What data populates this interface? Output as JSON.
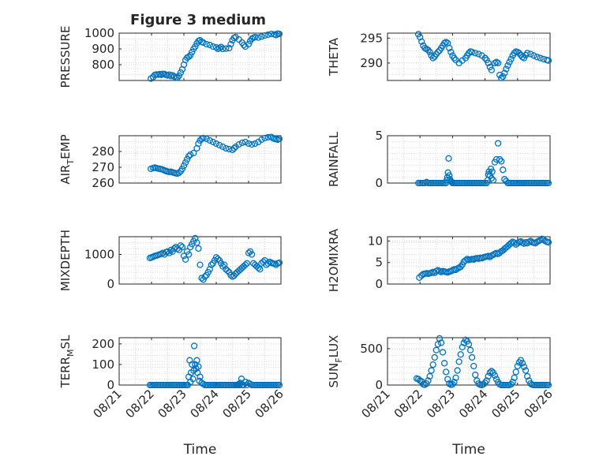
{
  "figure": {
    "title": "Figure 3 medium"
  },
  "chart_data": [
    {
      "type": "scatter",
      "ylabel": "PRESSURE",
      "xlabel": "",
      "xlim": [
        0,
        5
      ],
      "ylim": [
        700,
        1000
      ],
      "yticks": [
        800,
        900,
        1000
      ],
      "xticks": [
        0,
        1,
        2,
        3,
        4,
        5
      ],
      "xtick_labels": [],
      "grid": true,
      "x": [
        0.98,
        1.05,
        1.1,
        1.15,
        1.2,
        1.25,
        1.3,
        1.35,
        1.4,
        1.45,
        1.5,
        1.55,
        1.6,
        1.65,
        1.7,
        1.75,
        1.8,
        1.85,
        1.9,
        1.95,
        2.0,
        2.05,
        2.1,
        2.15,
        2.2,
        2.25,
        2.3,
        2.35,
        2.4,
        2.45,
        2.5,
        2.55,
        2.6,
        2.7,
        2.8,
        2.9,
        3.0,
        3.05,
        3.1,
        3.15,
        3.2,
        3.3,
        3.4,
        3.45,
        3.5,
        3.55,
        3.6,
        3.7,
        3.8,
        3.85,
        3.9,
        4.0,
        4.05,
        4.1,
        4.15,
        4.2,
        4.3,
        4.4,
        4.5,
        4.6,
        4.7,
        4.8,
        4.85,
        4.9,
        4.95
      ],
      "y": [
        712,
        722,
        735,
        738,
        737,
        740,
        736,
        742,
        741,
        735,
        732,
        737,
        728,
        733,
        725,
        720,
        718,
        730,
        750,
        770,
        800,
        830,
        845,
        850,
        860,
        880,
        900,
        915,
        935,
        950,
        955,
        945,
        940,
        930,
        925,
        915,
        910,
        900,
        905,
        912,
        900,
        902,
        905,
        930,
        955,
        970,
        975,
        960,
        940,
        925,
        915,
        930,
        950,
        965,
        970,
        975,
        972,
        978,
        985,
        990,
        995,
        992,
        988,
        997,
        995
      ]
    },
    {
      "type": "scatter",
      "ylabel": "THETA",
      "xlabel": "",
      "xlim": [
        0,
        5
      ],
      "ylim": [
        286.5,
        296
      ],
      "yticks": [
        290,
        295
      ],
      "xticks": [
        0,
        1,
        2,
        3,
        4,
        5
      ],
      "xtick_labels": [],
      "grid": true,
      "x": [
        0.95,
        1.0,
        1.05,
        1.1,
        1.15,
        1.2,
        1.25,
        1.3,
        1.35,
        1.4,
        1.45,
        1.5,
        1.55,
        1.6,
        1.65,
        1.7,
        1.75,
        1.8,
        1.85,
        1.9,
        1.95,
        2.0,
        2.05,
        2.1,
        2.2,
        2.3,
        2.4,
        2.45,
        2.5,
        2.55,
        2.6,
        2.7,
        2.8,
        2.9,
        3.0,
        3.05,
        3.1,
        3.15,
        3.2,
        3.3,
        3.35,
        3.4,
        3.45,
        3.5,
        3.55,
        3.6,
        3.65,
        3.7,
        3.75,
        3.8,
        3.85,
        3.9,
        3.95,
        4.0,
        4.05,
        4.1,
        4.15,
        4.2,
        4.25,
        4.3,
        4.4,
        4.5,
        4.6,
        4.7,
        4.8,
        4.9,
        4.95
      ],
      "y": [
        295.8,
        295.2,
        294.3,
        293.5,
        293.0,
        292.8,
        292.6,
        292.2,
        291.5,
        291.0,
        291.3,
        291.8,
        292.2,
        292.5,
        293.0,
        293.5,
        294.0,
        294.2,
        294.0,
        293.0,
        292.2,
        291.5,
        291.0,
        290.6,
        290.0,
        290.5,
        291.0,
        291.5,
        292.0,
        292.3,
        292.2,
        292.0,
        291.8,
        291.5,
        291.0,
        290.6,
        290.0,
        289.2,
        288.6,
        290.0,
        290.2,
        290.0,
        287.6,
        287.0,
        287.3,
        288.0,
        288.8,
        289.5,
        290.2,
        290.8,
        291.5,
        292.0,
        292.3,
        292.2,
        292.0,
        291.6,
        291.2,
        291.0,
        291.6,
        292.0,
        291.8,
        291.5,
        291.2,
        291.0,
        290.8,
        290.6,
        290.5
      ]
    },
    {
      "type": "scatter",
      "ylabel": "AIR_TEMP",
      "xlabel": "",
      "xlim": [
        0,
        5
      ],
      "ylim": [
        260,
        290
      ],
      "yticks": [
        260,
        270,
        280
      ],
      "xticks": [
        0,
        1,
        2,
        3,
        4,
        5
      ],
      "xtick_labels": [],
      "grid": true,
      "x": [
        0.98,
        1.05,
        1.1,
        1.15,
        1.2,
        1.25,
        1.3,
        1.35,
        1.4,
        1.45,
        1.5,
        1.55,
        1.6,
        1.65,
        1.7,
        1.75,
        1.8,
        1.85,
        1.9,
        1.95,
        2.0,
        2.05,
        2.1,
        2.15,
        2.2,
        2.3,
        2.4,
        2.45,
        2.5,
        2.55,
        2.6,
        2.7,
        2.8,
        2.9,
        3.0,
        3.1,
        3.2,
        3.3,
        3.4,
        3.5,
        3.55,
        3.6,
        3.7,
        3.8,
        3.9,
        4.0,
        4.1,
        4.2,
        4.3,
        4.4,
        4.5,
        4.6,
        4.7,
        4.75,
        4.8,
        4.85,
        4.9,
        4.95
      ],
      "y": [
        269,
        269.5,
        269.8,
        269.5,
        269.2,
        269.0,
        268.8,
        268.5,
        268.0,
        267.6,
        267.3,
        267.0,
        267.2,
        266.8,
        266.5,
        266.2,
        266.0,
        266.5,
        267.5,
        269,
        271,
        273,
        275,
        277,
        278,
        279,
        282,
        285,
        287,
        288,
        288.5,
        288,
        287,
        286,
        285,
        284,
        283,
        282,
        281.5,
        281,
        282,
        283,
        284.5,
        285.5,
        286,
        285,
        284.5,
        285,
        286,
        287.5,
        288.5,
        289,
        289.2,
        288.5,
        288,
        287.8,
        287.5,
        288
      ]
    },
    {
      "type": "scatter",
      "ylabel": "RAINFALL",
      "xlabel": "",
      "xlim": [
        0,
        5
      ],
      "ylim": [
        0,
        5
      ],
      "yticks": [
        0,
        5
      ],
      "xticks": [
        0,
        1,
        2,
        3,
        4,
        5
      ],
      "xtick_labels": [],
      "grid": true,
      "x": [
        0.95,
        1.0,
        1.05,
        1.1,
        1.15,
        1.2,
        1.25,
        1.3,
        1.35,
        1.4,
        1.45,
        1.5,
        1.55,
        1.6,
        1.65,
        1.7,
        1.75,
        1.8,
        1.82,
        1.84,
        1.86,
        1.88,
        1.9,
        1.92,
        1.95,
        1.98,
        2.0,
        2.05,
        2.1,
        2.15,
        2.2,
        2.25,
        2.3,
        2.35,
        2.4,
        2.45,
        2.5,
        2.55,
        2.6,
        2.65,
        2.7,
        2.75,
        2.8,
        2.85,
        2.9,
        2.95,
        3.0,
        3.05,
        3.08,
        3.1,
        3.12,
        3.15,
        3.18,
        3.2,
        3.22,
        3.25,
        3.3,
        3.35,
        3.4,
        3.45,
        3.5,
        3.55,
        3.6,
        3.65,
        3.7,
        3.75,
        3.8,
        3.85,
        3.9,
        3.95,
        4.0,
        4.05,
        4.1,
        4.15,
        4.2,
        4.25,
        4.3,
        4.35,
        4.4,
        4.45,
        4.5,
        4.55,
        4.6,
        4.65,
        4.7,
        4.75,
        4.8,
        4.85,
        4.9,
        4.95
      ],
      "y": [
        0,
        0,
        0,
        0,
        0,
        0.1,
        0,
        0,
        0,
        0,
        0,
        0,
        0,
        0,
        0,
        0,
        0,
        0,
        0.3,
        0.6,
        1.1,
        2.6,
        0.8,
        0.4,
        0.2,
        0.1,
        0,
        0,
        0,
        0,
        0,
        0,
        0,
        0,
        0,
        0,
        0,
        0,
        0,
        0,
        0,
        0,
        0,
        0,
        0,
        0,
        0,
        0,
        0.3,
        0.9,
        1.2,
        0.8,
        1.5,
        0.5,
        1.2,
        0.3,
        2.2,
        2.5,
        4.2,
        2.5,
        2.3,
        1.4,
        0.4,
        0.2,
        0,
        0,
        0,
        0,
        0,
        0,
        0,
        0,
        0,
        0,
        0,
        0,
        0,
        0,
        0,
        0,
        0,
        0,
        0,
        0,
        0,
        0,
        0,
        0,
        0,
        0
      ]
    },
    {
      "type": "scatter",
      "ylabel": "MIXDEPTH",
      "xlabel": "",
      "xlim": [
        0,
        5
      ],
      "ylim": [
        0,
        1600
      ],
      "yticks": [
        0,
        1000
      ],
      "xticks": [
        0,
        1,
        2,
        3,
        4,
        5
      ],
      "xtick_labels": [],
      "grid": true,
      "x": [
        0.95,
        1.0,
        1.05,
        1.1,
        1.15,
        1.2,
        1.25,
        1.3,
        1.35,
        1.4,
        1.45,
        1.5,
        1.55,
        1.6,
        1.65,
        1.7,
        1.75,
        1.8,
        1.85,
        1.9,
        1.95,
        2.0,
        2.05,
        2.1,
        2.15,
        2.2,
        2.25,
        2.3,
        2.35,
        2.4,
        2.45,
        2.5,
        2.55,
        2.6,
        2.65,
        2.7,
        2.75,
        2.8,
        2.85,
        2.9,
        2.95,
        3.0,
        3.05,
        3.1,
        3.15,
        3.2,
        3.25,
        3.3,
        3.35,
        3.4,
        3.45,
        3.5,
        3.55,
        3.6,
        3.65,
        3.7,
        3.75,
        3.8,
        3.85,
        3.9,
        3.95,
        4.0,
        4.05,
        4.1,
        4.15,
        4.2,
        4.25,
        4.3,
        4.35,
        4.4,
        4.45,
        4.5,
        4.55,
        4.6,
        4.65,
        4.7,
        4.75,
        4.8,
        4.85,
        4.9,
        4.95
      ],
      "y": [
        880,
        900,
        920,
        950,
        960,
        980,
        1000,
        1020,
        1050,
        1000,
        1080,
        1100,
        1050,
        1150,
        1100,
        1200,
        1250,
        1200,
        1150,
        1300,
        1250,
        950,
        830,
        1100,
        1000,
        1250,
        1350,
        1450,
        1550,
        1400,
        1200,
        650,
        200,
        150,
        250,
        300,
        400,
        500,
        650,
        700,
        800,
        900,
        850,
        800,
        700,
        600,
        650,
        500,
        450,
        400,
        300,
        250,
        280,
        350,
        400,
        450,
        500,
        550,
        600,
        650,
        700,
        1050,
        1100,
        1000,
        700,
        650,
        600,
        550,
        500,
        700,
        750,
        800,
        650,
        700,
        750,
        720,
        700,
        680,
        650,
        700,
        720
      ]
    },
    {
      "type": "scatter",
      "ylabel": "H2OMIXRA",
      "xlabel": "",
      "xlim": [
        0,
        5
      ],
      "ylim": [
        0,
        11
      ],
      "yticks": [
        0,
        5,
        10
      ],
      "xticks": [
        0,
        1,
        2,
        3,
        4,
        5
      ],
      "xtick_labels": [],
      "grid": true,
      "x": [
        0.98,
        1.05,
        1.1,
        1.15,
        1.2,
        1.25,
        1.3,
        1.35,
        1.4,
        1.45,
        1.5,
        1.55,
        1.6,
        1.65,
        1.7,
        1.75,
        1.8,
        1.85,
        1.9,
        1.95,
        2.0,
        2.05,
        2.1,
        2.15,
        2.2,
        2.25,
        2.3,
        2.35,
        2.4,
        2.45,
        2.5,
        2.55,
        2.6,
        2.65,
        2.7,
        2.75,
        2.8,
        2.85,
        2.9,
        2.95,
        3.0,
        3.05,
        3.1,
        3.15,
        3.2,
        3.25,
        3.3,
        3.35,
        3.4,
        3.45,
        3.5,
        3.55,
        3.6,
        3.65,
        3.7,
        3.75,
        3.8,
        3.85,
        3.9,
        3.95,
        4.0,
        4.05,
        4.1,
        4.15,
        4.2,
        4.25,
        4.3,
        4.35,
        4.4,
        4.45,
        4.5,
        4.55,
        4.6,
        4.65,
        4.7,
        4.75,
        4.8,
        4.85,
        4.9,
        4.95
      ],
      "y": [
        1.5,
        2.0,
        2.3,
        2.4,
        2.5,
        2.4,
        2.5,
        2.6,
        2.8,
        2.6,
        3.0,
        3.2,
        3.0,
        2.8,
        3.0,
        2.9,
        2.8,
        2.7,
        2.9,
        3.0,
        3.2,
        3.4,
        3.3,
        3.6,
        3.8,
        4.0,
        4.5,
        5.2,
        5.5,
        5.8,
        5.6,
        5.7,
        5.8,
        5.7,
        5.9,
        6.0,
        5.9,
        6.1,
        6.0,
        6.2,
        6.3,
        6.4,
        6.5,
        6.3,
        6.6,
        6.8,
        7.0,
        7.2,
        7.0,
        7.3,
        7.6,
        7.8,
        8.2,
        8.5,
        8.8,
        9.2,
        9.5,
        9.8,
        9.6,
        9.2,
        9.5,
        9.8,
        9.9,
        9.6,
        9.4,
        9.7,
        9.5,
        9.8,
        10.0,
        9.7,
        9.6,
        9.5,
        9.8,
        10.0,
        10.2,
        10.5,
        10.3,
        10.0,
        9.8,
        9.7
      ]
    },
    {
      "type": "scatter",
      "ylabel": "TERR_MSL",
      "xlabel": "Time",
      "xlim": [
        0,
        5
      ],
      "ylim": [
        0,
        230
      ],
      "yticks": [
        0,
        100,
        200
      ],
      "xticks": [
        0,
        1,
        2,
        3,
        4,
        5
      ],
      "xtick_labels": [
        "08/21",
        "08/22",
        "08/23",
        "08/24",
        "08/25",
        "08/26"
      ],
      "grid": true,
      "x": [
        0.95,
        1.0,
        1.05,
        1.1,
        1.15,
        1.2,
        1.25,
        1.3,
        1.35,
        1.4,
        1.45,
        1.5,
        1.55,
        1.6,
        1.65,
        1.7,
        1.75,
        1.8,
        1.85,
        1.9,
        1.95,
        2.0,
        2.05,
        2.1,
        2.12,
        2.15,
        2.18,
        2.2,
        2.22,
        2.25,
        2.28,
        2.3,
        2.32,
        2.35,
        2.38,
        2.4,
        2.42,
        2.45,
        2.48,
        2.5,
        2.55,
        2.6,
        2.65,
        2.7,
        2.75,
        2.8,
        2.85,
        2.9,
        2.95,
        3.0,
        3.05,
        3.1,
        3.15,
        3.2,
        3.25,
        3.3,
        3.35,
        3.4,
        3.45,
        3.5,
        3.55,
        3.6,
        3.62,
        3.65,
        3.68,
        3.7,
        3.72,
        3.75,
        3.78,
        3.8,
        3.82,
        3.85,
        3.9,
        3.95,
        4.0,
        4.05,
        4.1,
        4.15,
        4.2,
        4.25,
        4.3,
        4.35,
        4.4,
        4.45,
        4.5,
        4.55,
        4.6,
        4.65,
        4.7,
        4.75,
        4.8,
        4.85,
        4.9,
        4.95
      ],
      "y": [
        0,
        0,
        0,
        0,
        0,
        0,
        0,
        0,
        0,
        0,
        0,
        0,
        0,
        0,
        0,
        0,
        0,
        0,
        0,
        0,
        0,
        0,
        0,
        0,
        0,
        40,
        120,
        15,
        60,
        100,
        30,
        70,
        190,
        100,
        80,
        120,
        60,
        90,
        20,
        40,
        10,
        5,
        0,
        0,
        0,
        0,
        0,
        0,
        0,
        0,
        0,
        0,
        0,
        0,
        0,
        0,
        0,
        0,
        0,
        0,
        0,
        0,
        0,
        0,
        0,
        5,
        0,
        10,
        30,
        0,
        0,
        0,
        15,
        0,
        10,
        5,
        0,
        0,
        0,
        0,
        0,
        0,
        0,
        0,
        0,
        0,
        0,
        0,
        0,
        0,
        0,
        0,
        0,
        0
      ]
    },
    {
      "type": "scatter",
      "ylabel": "SUN_FLUX",
      "xlabel": "Time",
      "xlim": [
        0,
        5
      ],
      "ylim": [
        0,
        650
      ],
      "yticks": [
        0,
        500
      ],
      "xticks": [
        0,
        1,
        2,
        3,
        4,
        5
      ],
      "xtick_labels": [
        "08/21",
        "08/22",
        "08/23",
        "08/24",
        "08/25",
        "08/26"
      ],
      "grid": true,
      "x": [
        0.9,
        0.95,
        1.0,
        1.05,
        1.1,
        1.15,
        1.2,
        1.25,
        1.3,
        1.35,
        1.4,
        1.45,
        1.5,
        1.55,
        1.6,
        1.65,
        1.7,
        1.75,
        1.8,
        1.85,
        1.9,
        1.95,
        2.0,
        2.05,
        2.1,
        2.15,
        2.2,
        2.25,
        2.3,
        2.35,
        2.4,
        2.45,
        2.5,
        2.55,
        2.6,
        2.65,
        2.7,
        2.75,
        2.8,
        2.85,
        2.9,
        2.95,
        3.0,
        3.05,
        3.1,
        3.15,
        3.2,
        3.25,
        3.3,
        3.35,
        3.4,
        3.45,
        3.5,
        3.55,
        3.6,
        3.65,
        3.7,
        3.75,
        3.8,
        3.85,
        3.9,
        3.95,
        4.0,
        4.05,
        4.1,
        4.15,
        4.2,
        4.25,
        4.3,
        4.35,
        4.4,
        4.45,
        4.5,
        4.55,
        4.6,
        4.65,
        4.7,
        4.75,
        4.8,
        4.85,
        4.9,
        4.95
      ],
      "y": [
        90,
        80,
        60,
        50,
        10,
        5,
        20,
        60,
        120,
        200,
        280,
        380,
        480,
        560,
        640,
        580,
        450,
        300,
        180,
        80,
        20,
        5,
        10,
        40,
        100,
        200,
        320,
        420,
        520,
        580,
        620,
        600,
        560,
        480,
        380,
        260,
        140,
        60,
        20,
        5,
        0,
        10,
        30,
        60,
        120,
        170,
        190,
        170,
        130,
        80,
        40,
        10,
        0,
        0,
        0,
        0,
        0,
        0,
        10,
        40,
        100,
        180,
        260,
        310,
        340,
        300,
        250,
        200,
        120,
        60,
        20,
        5,
        0,
        0,
        0,
        0,
        0,
        0,
        0,
        0,
        0,
        0
      ]
    }
  ]
}
